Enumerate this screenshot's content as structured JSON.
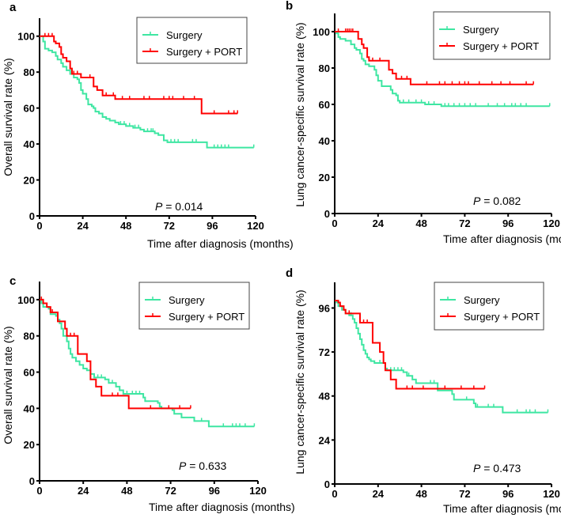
{
  "colors": {
    "surgery": "#3ee6a2",
    "port": "#ff0000",
    "axis": "#000000"
  },
  "chart_data": [
    {
      "type": "line",
      "panel": "a",
      "title": "",
      "xlabel": "Time after diagnosis  (months)",
      "ylabel": "Overall survival rate (%)",
      "xlim": [
        0,
        120
      ],
      "ylim": [
        0,
        110
      ],
      "xticks": [
        0,
        24,
        48,
        72,
        96,
        120
      ],
      "yticks": [
        0,
        20,
        40,
        60,
        80,
        100
      ],
      "legend": [
        "Surgery",
        "Surgery + PORT"
      ],
      "legend_position": "top-right",
      "annotation": {
        "p_label": "P",
        "p_value": "= 0.014"
      },
      "series": [
        {
          "name": "Surgery",
          "steps": [
            [
              0,
              100
            ],
            [
              1,
              100
            ],
            [
              2,
              97
            ],
            [
              3,
              93
            ],
            [
              5,
              92
            ],
            [
              7,
              91
            ],
            [
              9,
              89
            ],
            [
              10,
              87
            ],
            [
              12,
              85
            ],
            [
              13,
              83
            ],
            [
              15,
              81
            ],
            [
              17,
              79
            ],
            [
              19,
              77
            ],
            [
              21,
              76
            ],
            [
              22,
              74
            ],
            [
              23,
              70
            ],
            [
              24,
              68
            ],
            [
              26,
              65
            ],
            [
              27,
              62
            ],
            [
              29,
              61
            ],
            [
              30,
              60
            ],
            [
              31,
              58
            ],
            [
              33,
              57
            ],
            [
              35,
              55
            ],
            [
              37,
              54
            ],
            [
              39,
              53
            ],
            [
              42,
              52
            ],
            [
              44,
              51
            ],
            [
              48,
              50
            ],
            [
              52,
              49
            ],
            [
              56,
              48
            ],
            [
              58,
              47
            ],
            [
              64,
              46
            ],
            [
              66,
              45
            ],
            [
              69,
              42
            ],
            [
              71,
              41
            ],
            [
              93,
              38
            ],
            [
              119,
              38
            ]
          ],
          "censored": [
            45,
            47,
            50,
            53,
            55,
            60,
            62,
            63,
            73,
            75,
            77,
            85,
            87,
            97,
            99,
            101,
            103,
            105,
            119
          ]
        },
        {
          "name": "Surgery + PORT",
          "steps": [
            [
              0,
              100
            ],
            [
              8,
              97
            ],
            [
              9,
              96
            ],
            [
              11,
              94
            ],
            [
              12,
              90
            ],
            [
              13,
              88
            ],
            [
              15,
              86
            ],
            [
              17,
              82
            ],
            [
              18,
              79
            ],
            [
              23,
              77
            ],
            [
              30,
              72
            ],
            [
              32,
              70
            ],
            [
              35,
              67
            ],
            [
              42,
              65
            ],
            [
              90,
              57
            ],
            [
              110,
              57
            ]
          ],
          "censored": [
            3,
            5,
            7,
            19,
            21,
            28,
            37,
            41,
            46,
            50,
            58,
            61,
            69,
            72,
            74,
            80,
            86,
            97,
            105,
            108,
            110
          ]
        }
      ]
    },
    {
      "type": "line",
      "panel": "b",
      "title": "",
      "xlabel": "Time after diagnosis  (months)",
      "ylabel": "Lung cancer-specific survival rate (%)",
      "xlim": [
        0,
        120
      ],
      "ylim": [
        0,
        110
      ],
      "xticks": [
        0,
        24,
        48,
        72,
        96,
        120
      ],
      "yticks": [
        0,
        20,
        40,
        60,
        80,
        100
      ],
      "legend": [
        "Surgery",
        "Surgery + PORT"
      ],
      "legend_position": "top-right",
      "annotation": {
        "p_label": "P",
        "p_value": "= 0.082"
      },
      "series": [
        {
          "name": "Surgery",
          "steps": [
            [
              0,
              100
            ],
            [
              1,
              99
            ],
            [
              2,
              97
            ],
            [
              3,
              96
            ],
            [
              6,
              95
            ],
            [
              9,
              93
            ],
            [
              11,
              91
            ],
            [
              12,
              90
            ],
            [
              14,
              88
            ],
            [
              15,
              85
            ],
            [
              16,
              84
            ],
            [
              17,
              82
            ],
            [
              19,
              81
            ],
            [
              22,
              79
            ],
            [
              23,
              76
            ],
            [
              24,
              73
            ],
            [
              26,
              70
            ],
            [
              31,
              68
            ],
            [
              32,
              66
            ],
            [
              34,
              65
            ],
            [
              35,
              62
            ],
            [
              36,
              61
            ],
            [
              50,
              60
            ],
            [
              59,
              59
            ],
            [
              119,
              59
            ]
          ],
          "censored": [
            38,
            41,
            45,
            48,
            52,
            55,
            61,
            63,
            66,
            69,
            72,
            75,
            78,
            85,
            90,
            94,
            98,
            100,
            103,
            106,
            119
          ]
        },
        {
          "name": "Surgery + PORT",
          "steps": [
            [
              0,
              100
            ],
            [
              13,
              96
            ],
            [
              15,
              93
            ],
            [
              16,
              91
            ],
            [
              18,
              86
            ],
            [
              19,
              84
            ],
            [
              30,
              79
            ],
            [
              32,
              77
            ],
            [
              34,
              74
            ],
            [
              42,
              71
            ],
            [
              110,
              71
            ]
          ],
          "censored": [
            2,
            6,
            7,
            8,
            9,
            10,
            21,
            25,
            37,
            40,
            51,
            58,
            61,
            65,
            69,
            72,
            74,
            80,
            87,
            92,
            97,
            106,
            110
          ]
        }
      ]
    },
    {
      "type": "line",
      "panel": "c",
      "title": "",
      "xlabel": "Time after diagnosis (months)",
      "ylabel": "Overall survival rate (%)",
      "xlim": [
        0,
        120
      ],
      "ylim": [
        0,
        110
      ],
      "xticks": [
        0,
        24,
        48,
        72,
        96,
        120
      ],
      "yticks": [
        0,
        20,
        40,
        60,
        80,
        100
      ],
      "legend": [
        "Surgery",
        "Surgery + PORT"
      ],
      "legend_position": "top-right",
      "annotation": {
        "p_label": "P",
        "p_value": "= 0.633"
      },
      "series": [
        {
          "name": "Surgery",
          "steps": [
            [
              0,
              100
            ],
            [
              1,
              98
            ],
            [
              2,
              96
            ],
            [
              5,
              95
            ],
            [
              6,
              92
            ],
            [
              9,
              91
            ],
            [
              10,
              89
            ],
            [
              11,
              87
            ],
            [
              12,
              84
            ],
            [
              13,
              80
            ],
            [
              15,
              77
            ],
            [
              16,
              73
            ],
            [
              17,
              70
            ],
            [
              18,
              68
            ],
            [
              20,
              66
            ],
            [
              22,
              64
            ],
            [
              24,
              62
            ],
            [
              26,
              61
            ],
            [
              28,
              59
            ],
            [
              30,
              57
            ],
            [
              36,
              56
            ],
            [
              38,
              54
            ],
            [
              42,
              52
            ],
            [
              44,
              50
            ],
            [
              46,
              48
            ],
            [
              56,
              48
            ],
            [
              57,
              46
            ],
            [
              58,
              44
            ],
            [
              65,
              43
            ],
            [
              66,
              41
            ],
            [
              67,
              40
            ],
            [
              73,
              39
            ],
            [
              74,
              37
            ],
            [
              78,
              35
            ],
            [
              85,
              33
            ],
            [
              93,
              30
            ],
            [
              118,
              30
            ]
          ],
          "censored": [
            4,
            32,
            34,
            40,
            48,
            51,
            53,
            55,
            66,
            78,
            89,
            101,
            106,
            108,
            110,
            113,
            118
          ]
        },
        {
          "name": "Surgery + PORT",
          "steps": [
            [
              0,
              100
            ],
            [
              2,
              98
            ],
            [
              4,
              96
            ],
            [
              6,
              93
            ],
            [
              10,
              88
            ],
            [
              14,
              84
            ],
            [
              15,
              80
            ],
            [
              21,
              70
            ],
            [
              26,
              66
            ],
            [
              28,
              56
            ],
            [
              31,
              52
            ],
            [
              34,
              47
            ],
            [
              49,
              40
            ],
            [
              83,
              40
            ]
          ],
          "censored": [
            1,
            7,
            17,
            19,
            40,
            43,
            61,
            71,
            77,
            83
          ]
        }
      ]
    },
    {
      "type": "line",
      "panel": "d",
      "title": "",
      "xlabel": "Time after diagnosis  (months)",
      "ylabel": "Lung cancer-specific survival rate (%)",
      "xlim": [
        0,
        120
      ],
      "ylim": [
        0,
        110
      ],
      "xticks": [
        0,
        24,
        48,
        72,
        96,
        120
      ],
      "yticks": [
        0,
        24,
        48,
        72,
        96
      ],
      "legend": [
        "Surgery",
        "Surgery + PORT"
      ],
      "legend_position": "top-right",
      "annotation": {
        "p_label": "P",
        "p_value": "= 0.473"
      },
      "series": [
        {
          "name": "Surgery",
          "steps": [
            [
              0,
              100
            ],
            [
              1,
              99
            ],
            [
              2,
              97
            ],
            [
              4,
              95
            ],
            [
              6,
              93
            ],
            [
              8,
              92
            ],
            [
              10,
              90
            ],
            [
              11,
              88
            ],
            [
              12,
              85
            ],
            [
              13,
              82
            ],
            [
              14,
              79
            ],
            [
              15,
              76
            ],
            [
              16,
              73
            ],
            [
              17,
              71
            ],
            [
              18,
              69
            ],
            [
              19,
              68
            ],
            [
              20,
              67
            ],
            [
              22,
              66
            ],
            [
              28,
              63
            ],
            [
              29,
              62
            ],
            [
              38,
              61
            ],
            [
              40,
              59
            ],
            [
              43,
              57
            ],
            [
              45,
              55
            ],
            [
              56,
              55
            ],
            [
              57,
              51
            ],
            [
              65,
              49
            ],
            [
              66,
              46
            ],
            [
              77,
              44
            ],
            [
              78,
              42
            ],
            [
              93,
              39
            ],
            [
              118,
              39
            ]
          ],
          "censored": [
            9,
            25,
            31,
            33,
            35,
            37,
            41,
            53,
            55,
            66,
            73,
            79,
            85,
            88,
            101,
            106,
            108,
            111,
            118
          ]
        },
        {
          "name": "Surgery + PORT",
          "steps": [
            [
              0,
              100
            ],
            [
              2,
              99
            ],
            [
              3,
              97
            ],
            [
              5,
              95
            ],
            [
              6,
              93
            ],
            [
              14,
              88
            ],
            [
              21,
              77
            ],
            [
              25,
              72
            ],
            [
              27,
              66
            ],
            [
              28,
              62
            ],
            [
              31,
              57
            ],
            [
              34,
              52
            ],
            [
              83,
              52
            ]
          ],
          "censored": [
            8,
            16,
            18,
            40,
            43,
            49,
            61,
            70,
            77,
            83
          ]
        }
      ]
    }
  ]
}
